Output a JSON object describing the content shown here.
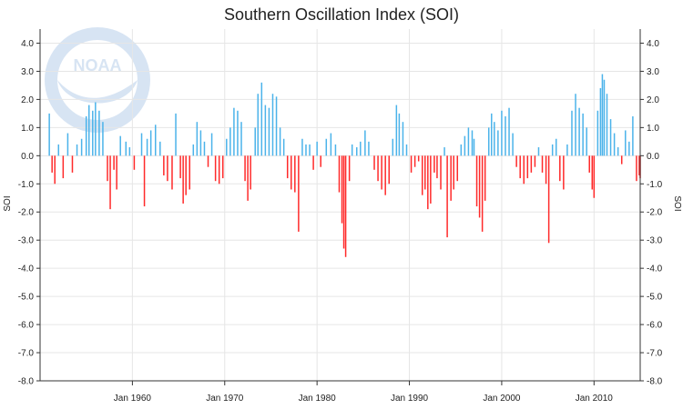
{
  "chart_data": {
    "type": "bar",
    "title": "Southern Oscillation Index (SOI)",
    "ylabel_left": "SOI",
    "ylabel_right": "SOI",
    "ylim": [
      -8.0,
      4.5
    ],
    "xlim": [
      1950.0,
      2015.0
    ],
    "y_ticks": [
      {
        "value": 4.0,
        "label": "4.0"
      },
      {
        "value": 3.0,
        "label": "3.0"
      },
      {
        "value": 2.0,
        "label": "2.0"
      },
      {
        "value": 1.0,
        "label": "1.0"
      },
      {
        "value": 0.0,
        "label": "0.0"
      },
      {
        "value": -1.0,
        "label": "-1.0"
      },
      {
        "value": -2.0,
        "label": "-2.0"
      },
      {
        "value": -3.0,
        "label": "-3.0"
      },
      {
        "value": -4.0,
        "label": "-4.0"
      },
      {
        "value": -5.0,
        "label": "-5.0"
      },
      {
        "value": -6.0,
        "label": "-6.0"
      },
      {
        "value": -7.0,
        "label": "-7.0"
      },
      {
        "value": -8.0,
        "label": "-8.0"
      }
    ],
    "x_ticks": [
      {
        "value": 1960,
        "label": "Jan 1960"
      },
      {
        "value": 1970,
        "label": "Jan 1970"
      },
      {
        "value": 1980,
        "label": "Jan 1980"
      },
      {
        "value": 1990,
        "label": "Jan 1990"
      },
      {
        "value": 2000,
        "label": "Jan 2000"
      },
      {
        "value": 2010,
        "label": "Jan 2010"
      }
    ],
    "grid": true,
    "colors": {
      "positive": "#4bb3ea",
      "negative": "#ff2a2a",
      "grid": "#e6e6e6",
      "axis": "#333333"
    },
    "series": [
      {
        "values": [
          [
            1951.0,
            1.5
          ],
          [
            1951.3,
            -0.6
          ],
          [
            1951.6,
            -1.0
          ],
          [
            1952.0,
            0.4
          ],
          [
            1952.5,
            -0.8
          ],
          [
            1953.0,
            0.8
          ],
          [
            1953.5,
            -0.6
          ],
          [
            1954.0,
            0.4
          ],
          [
            1954.5,
            0.6
          ],
          [
            1955.0,
            1.4
          ],
          [
            1955.3,
            1.8
          ],
          [
            1955.7,
            1.6
          ],
          [
            1956.0,
            1.9
          ],
          [
            1956.4,
            1.6
          ],
          [
            1956.8,
            1.2
          ],
          [
            1957.3,
            -0.9
          ],
          [
            1957.6,
            -1.9
          ],
          [
            1958.0,
            -0.5
          ],
          [
            1958.3,
            -1.2
          ],
          [
            1958.7,
            0.7
          ],
          [
            1959.3,
            0.5
          ],
          [
            1959.7,
            0.3
          ],
          [
            1960.2,
            -0.5
          ],
          [
            1961.0,
            0.8
          ],
          [
            1961.3,
            -1.8
          ],
          [
            1961.6,
            0.6
          ],
          [
            1962.0,
            0.9
          ],
          [
            1962.5,
            1.1
          ],
          [
            1963.0,
            0.5
          ],
          [
            1963.4,
            -0.7
          ],
          [
            1963.8,
            -0.9
          ],
          [
            1964.3,
            -1.2
          ],
          [
            1964.7,
            1.5
          ],
          [
            1965.2,
            -0.8
          ],
          [
            1965.5,
            -1.7
          ],
          [
            1965.8,
            -1.4
          ],
          [
            1966.2,
            -1.2
          ],
          [
            1966.6,
            0.4
          ],
          [
            1967.0,
            1.2
          ],
          [
            1967.4,
            0.9
          ],
          [
            1967.8,
            0.5
          ],
          [
            1968.2,
            -0.4
          ],
          [
            1968.6,
            0.8
          ],
          [
            1969.0,
            -0.9
          ],
          [
            1969.4,
            -1.0
          ],
          [
            1969.8,
            -0.8
          ],
          [
            1970.2,
            0.6
          ],
          [
            1970.6,
            1.0
          ],
          [
            1971.0,
            1.7
          ],
          [
            1971.4,
            1.6
          ],
          [
            1971.8,
            1.2
          ],
          [
            1972.2,
            -0.9
          ],
          [
            1972.5,
            -1.6
          ],
          [
            1972.8,
            -1.2
          ],
          [
            1973.3,
            1.0
          ],
          [
            1973.6,
            2.2
          ],
          [
            1974.0,
            2.6
          ],
          [
            1974.4,
            1.8
          ],
          [
            1974.8,
            1.7
          ],
          [
            1975.2,
            2.2
          ],
          [
            1975.6,
            2.1
          ],
          [
            1976.0,
            1.0
          ],
          [
            1976.4,
            0.6
          ],
          [
            1976.8,
            -0.8
          ],
          [
            1977.2,
            -1.2
          ],
          [
            1977.6,
            -1.3
          ],
          [
            1978.0,
            -2.7
          ],
          [
            1978.4,
            0.6
          ],
          [
            1978.8,
            0.4
          ],
          [
            1979.2,
            0.4
          ],
          [
            1979.6,
            -0.5
          ],
          [
            1980.0,
            0.5
          ],
          [
            1980.4,
            -0.4
          ],
          [
            1981.0,
            0.6
          ],
          [
            1981.5,
            0.8
          ],
          [
            1982.0,
            0.4
          ],
          [
            1982.4,
            -1.3
          ],
          [
            1982.7,
            -2.4
          ],
          [
            1982.9,
            -3.3
          ],
          [
            1983.1,
            -3.6
          ],
          [
            1983.5,
            -0.9
          ],
          [
            1983.8,
            0.4
          ],
          [
            1984.3,
            0.3
          ],
          [
            1984.7,
            0.5
          ],
          [
            1985.2,
            0.9
          ],
          [
            1985.6,
            0.5
          ],
          [
            1986.2,
            -0.5
          ],
          [
            1986.6,
            -0.9
          ],
          [
            1987.0,
            -1.2
          ],
          [
            1987.4,
            -1.4
          ],
          [
            1987.8,
            -1.0
          ],
          [
            1988.2,
            0.6
          ],
          [
            1988.6,
            1.8
          ],
          [
            1988.9,
            1.5
          ],
          [
            1989.3,
            1.2
          ],
          [
            1989.7,
            0.4
          ],
          [
            1990.2,
            -0.6
          ],
          [
            1990.6,
            -0.4
          ],
          [
            1991.0,
            -0.2
          ],
          [
            1991.4,
            -1.4
          ],
          [
            1991.7,
            -1.2
          ],
          [
            1992.0,
            -1.9
          ],
          [
            1992.3,
            -1.7
          ],
          [
            1992.7,
            -0.6
          ],
          [
            1993.0,
            -0.8
          ],
          [
            1993.4,
            -1.2
          ],
          [
            1993.8,
            0.3
          ],
          [
            1994.1,
            -2.9
          ],
          [
            1994.5,
            -1.6
          ],
          [
            1994.8,
            -1.2
          ],
          [
            1995.2,
            -0.9
          ],
          [
            1995.6,
            0.4
          ],
          [
            1996.0,
            0.7
          ],
          [
            1996.4,
            1.0
          ],
          [
            1996.8,
            0.9
          ],
          [
            1997.0,
            0.6
          ],
          [
            1997.3,
            -1.8
          ],
          [
            1997.6,
            -2.2
          ],
          [
            1997.9,
            -2.7
          ],
          [
            1998.2,
            -1.6
          ],
          [
            1998.6,
            1.0
          ],
          [
            1998.9,
            1.5
          ],
          [
            1999.2,
            1.2
          ],
          [
            1999.6,
            0.9
          ],
          [
            2000.0,
            1.6
          ],
          [
            2000.4,
            1.4
          ],
          [
            2000.8,
            1.7
          ],
          [
            2001.2,
            0.8
          ],
          [
            2001.6,
            -0.4
          ],
          [
            2002.0,
            -0.8
          ],
          [
            2002.4,
            -1.0
          ],
          [
            2002.8,
            -0.8
          ],
          [
            2003.2,
            -0.6
          ],
          [
            2003.6,
            -0.4
          ],
          [
            2004.0,
            0.3
          ],
          [
            2004.4,
            -0.6
          ],
          [
            2004.8,
            -1.0
          ],
          [
            2005.1,
            -3.1
          ],
          [
            2005.5,
            0.4
          ],
          [
            2005.9,
            0.6
          ],
          [
            2006.3,
            -0.9
          ],
          [
            2006.7,
            -1.2
          ],
          [
            2007.1,
            0.4
          ],
          [
            2007.6,
            1.6
          ],
          [
            2008.0,
            2.2
          ],
          [
            2008.4,
            1.7
          ],
          [
            2008.8,
            1.5
          ],
          [
            2009.2,
            1.0
          ],
          [
            2009.5,
            -0.6
          ],
          [
            2009.8,
            -1.2
          ],
          [
            2010.0,
            -1.5
          ],
          [
            2010.4,
            1.6
          ],
          [
            2010.7,
            2.4
          ],
          [
            2010.9,
            2.9
          ],
          [
            2011.1,
            2.7
          ],
          [
            2011.4,
            2.2
          ],
          [
            2011.8,
            1.3
          ],
          [
            2012.2,
            0.8
          ],
          [
            2012.6,
            0.3
          ],
          [
            2013.0,
            -0.3
          ],
          [
            2013.4,
            0.9
          ],
          [
            2013.8,
            0.5
          ],
          [
            2014.2,
            1.4
          ],
          [
            2014.6,
            -0.9
          ],
          [
            2014.9,
            -0.7
          ],
          [
            2015.0,
            -0.8
          ]
        ]
      }
    ]
  }
}
